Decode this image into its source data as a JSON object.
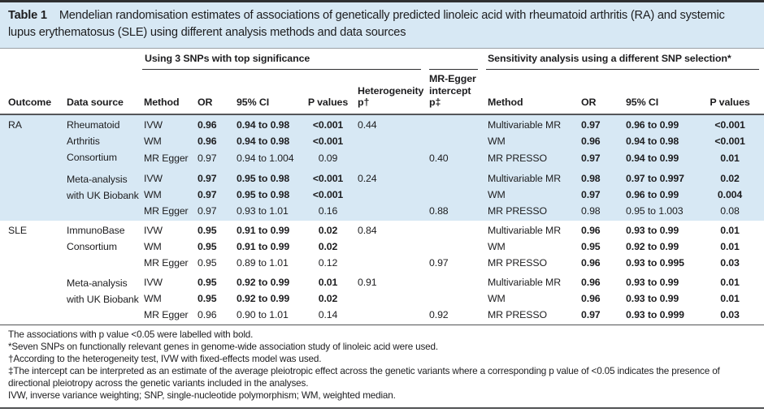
{
  "colors": {
    "highlight_blue": "#d7e8f4",
    "top_rule": "#2e2f31",
    "header_rule": "#55565a",
    "text": "#1d1d1f"
  },
  "table": {
    "label": "Table 1",
    "caption": "Mendelian randomisation estimates of associations of genetically predicted linoleic acid with rheumatoid arthritis (RA) and systemic lupus erythematosus (SLE) using different analysis methods and data sources",
    "spanners": {
      "primary": "Using 3 SNPs with top significance",
      "sensitivity": "Sensitivity analysis using a different SNP selection*"
    },
    "columns": {
      "outcome": "Outcome",
      "data_source": "Data source",
      "method": "Method",
      "or": "OR",
      "ci": "95% CI",
      "p": "P values",
      "het": "Heterogeneity\np†",
      "egger": "MR-Egger\nintercept\np‡",
      "s_method": "Method",
      "s_or": "OR",
      "s_ci": "95% CI",
      "s_p": "P values"
    },
    "rows": [
      {
        "group": "ra",
        "subgroup_start": false,
        "group_end": false,
        "outcome": "RA",
        "outcome_rowspan": 6,
        "data_source": "Rheumatoid Arthritis Consortium",
        "ds_rowspan": 3,
        "method": "IVW",
        "or": "0.96",
        "ci": "0.94 to 0.98",
        "p": "<0.001",
        "het_p": "0.44",
        "egger_p": "",
        "s_method": "Multivariable MR",
        "s_or": "0.97",
        "s_ci": "0.96 to 0.99",
        "s_p": "<0.001",
        "bold": true,
        "s_bold": true
      },
      {
        "group": "ra",
        "subgroup_start": false,
        "group_end": false,
        "outcome": "",
        "outcome_rowspan": 0,
        "data_source": "",
        "ds_rowspan": 0,
        "method": "WM",
        "or": "0.96",
        "ci": "0.94 to 0.98",
        "p": "<0.001",
        "het_p": "",
        "egger_p": "",
        "s_method": "WM",
        "s_or": "0.96",
        "s_ci": "0.94 to 0.98",
        "s_p": "<0.001",
        "bold": true,
        "s_bold": true
      },
      {
        "group": "ra",
        "subgroup_start": false,
        "group_end": false,
        "outcome": "",
        "outcome_rowspan": 0,
        "data_source": "",
        "ds_rowspan": 0,
        "method": "MR Egger",
        "or": "0.97",
        "ci": "0.94 to 1.004",
        "p": "0.09",
        "het_p": "",
        "egger_p": "0.40",
        "s_method": "MR PRESSO",
        "s_or": "0.97",
        "s_ci": "0.94 to 0.99",
        "s_p": "0.01",
        "bold": false,
        "s_bold": true
      },
      {
        "group": "ra",
        "subgroup_start": true,
        "group_end": false,
        "outcome": "",
        "outcome_rowspan": 0,
        "data_source": "Meta-analysis with UK Biobank",
        "ds_rowspan": 3,
        "method": "IVW",
        "or": "0.97",
        "ci": "0.95 to 0.98",
        "p": "<0.001",
        "het_p": "0.24",
        "egger_p": "",
        "s_method": "Multivariable MR",
        "s_or": "0.98",
        "s_ci": "0.97 to 0.997",
        "s_p": "0.02",
        "bold": true,
        "s_bold": true
      },
      {
        "group": "ra",
        "subgroup_start": false,
        "group_end": false,
        "outcome": "",
        "outcome_rowspan": 0,
        "data_source": "",
        "ds_rowspan": 0,
        "method": "WM",
        "or": "0.97",
        "ci": "0.95 to 0.98",
        "p": "<0.001",
        "het_p": "",
        "egger_p": "",
        "s_method": "WM",
        "s_or": "0.97",
        "s_ci": "0.96 to 0.99",
        "s_p": "0.004",
        "bold": true,
        "s_bold": true
      },
      {
        "group": "ra",
        "subgroup_start": false,
        "group_end": true,
        "outcome": "",
        "outcome_rowspan": 0,
        "data_source": "",
        "ds_rowspan": 0,
        "method": "MR Egger",
        "or": "0.97",
        "ci": "0.93 to 1.01",
        "p": "0.16",
        "het_p": "",
        "egger_p": "0.88",
        "s_method": "MR PRESSO",
        "s_or": "0.98",
        "s_ci": "0.95 to 1.003",
        "s_p": "0.08",
        "bold": false,
        "s_bold": false
      },
      {
        "group": "sle",
        "subgroup_start": false,
        "group_end": false,
        "outcome": "SLE",
        "outcome_rowspan": 6,
        "data_source": "ImmunoBase Consortium",
        "ds_rowspan": 3,
        "method": "IVW",
        "or": "0.95",
        "ci": "0.91 to 0.99",
        "p": "0.02",
        "het_p": "0.84",
        "egger_p": "",
        "s_method": "Multivariable MR",
        "s_or": "0.96",
        "s_ci": "0.93 to 0.99",
        "s_p": "0.01",
        "bold": true,
        "s_bold": true
      },
      {
        "group": "sle",
        "subgroup_start": false,
        "group_end": false,
        "outcome": "",
        "outcome_rowspan": 0,
        "data_source": "",
        "ds_rowspan": 0,
        "method": "WM",
        "or": "0.95",
        "ci": "0.91 to 0.99",
        "p": "0.02",
        "het_p": "",
        "egger_p": "",
        "s_method": "WM",
        "s_or": "0.95",
        "s_ci": "0.92 to 0.99",
        "s_p": "0.01",
        "bold": true,
        "s_bold": true
      },
      {
        "group": "sle",
        "subgroup_start": false,
        "group_end": false,
        "outcome": "",
        "outcome_rowspan": 0,
        "data_source": "",
        "ds_rowspan": 0,
        "method": "MR Egger",
        "or": "0.95",
        "ci": "0.89 to 1.01",
        "p": "0.12",
        "het_p": "",
        "egger_p": "0.97",
        "s_method": "MR PRESSO",
        "s_or": "0.96",
        "s_ci": "0.93 to 0.995",
        "s_p": "0.03",
        "bold": false,
        "s_bold": true
      },
      {
        "group": "sle",
        "subgroup_start": true,
        "group_end": false,
        "outcome": "",
        "outcome_rowspan": 0,
        "data_source": "Meta-analysis with UK Biobank",
        "ds_rowspan": 3,
        "method": "IVW",
        "or": "0.95",
        "ci": "0.92 to 0.99",
        "p": "0.01",
        "het_p": "0.91",
        "egger_p": "",
        "s_method": "Multivariable MR",
        "s_or": "0.96",
        "s_ci": "0.93 to 0.99",
        "s_p": "0.01",
        "bold": true,
        "s_bold": true
      },
      {
        "group": "sle",
        "subgroup_start": false,
        "group_end": false,
        "outcome": "",
        "outcome_rowspan": 0,
        "data_source": "",
        "ds_rowspan": 0,
        "method": "WM",
        "or": "0.95",
        "ci": "0.92 to 0.99",
        "p": "0.02",
        "het_p": "",
        "egger_p": "",
        "s_method": "WM",
        "s_or": "0.96",
        "s_ci": "0.93 to 0.99",
        "s_p": "0.01",
        "bold": true,
        "s_bold": true
      },
      {
        "group": "sle",
        "subgroup_start": false,
        "group_end": true,
        "outcome": "",
        "outcome_rowspan": 0,
        "data_source": "",
        "ds_rowspan": 0,
        "method": "MR Egger",
        "or": "0.96",
        "ci": "0.90 to 1.01",
        "p": "0.14",
        "het_p": "",
        "egger_p": "0.92",
        "s_method": "MR PRESSO",
        "s_or": "0.97",
        "s_ci": "0.93 to 0.999",
        "s_p": "0.03",
        "bold": false,
        "s_bold": true
      }
    ],
    "footnotes": [
      "The associations with p value <0.05 were labelled with bold.",
      "*Seven SNPs on functionally relevant genes in genome-wide association study of linoleic acid were used.",
      "†According to the heterogeneity test, IVW with fixed-effects model was used.",
      "‡The intercept can be interpreted as an estimate of the average pleiotropic effect across the genetic variants where a corresponding p value of <0.05 indicates the presence of directional pleiotropy across the genetic variants included in the analyses.",
      "IVW, inverse variance weighting; SNP, single-nucleotide polymorphism; WM, weighted median."
    ]
  }
}
